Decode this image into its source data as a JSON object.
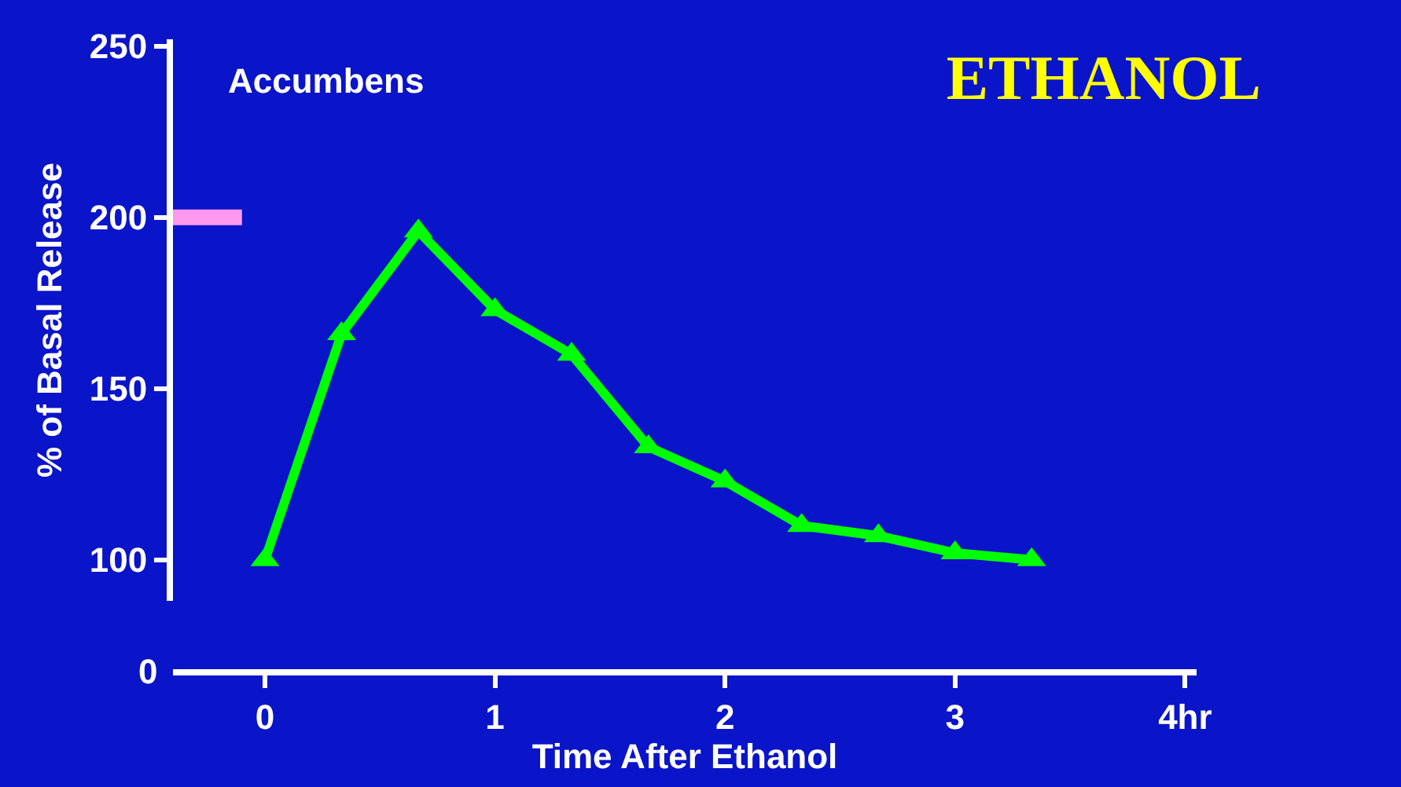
{
  "chart_data": {
    "type": "line",
    "title": "ETHANOL",
    "subtitle": "Accumbens",
    "xlabel": "Time After Ethanol",
    "ylabel": "% of Basal Release",
    "x": [
      0,
      0.333,
      0.667,
      1,
      1.333,
      1.667,
      2,
      2.333,
      2.667,
      3,
      3.333
    ],
    "series": [
      {
        "color": "#00ff00",
        "values": [
          100,
          166,
          196,
          173,
          160,
          133,
          123,
          110,
          107,
          102,
          100
        ]
      },
      {
        "color": "#ff99ee",
        "x": [
          -0.4,
          -0.1
        ],
        "values": [
          200,
          200
        ],
        "marker": "none"
      }
    ],
    "xlim": [
      -0.4,
      4.05
    ],
    "ylim": [
      88,
      252
    ],
    "annotations": [
      "0"
    ],
    "xticks": [
      0,
      1,
      2,
      3,
      {
        "value": 4,
        "label": "4hr"
      }
    ],
    "yticks": [
      100,
      150,
      200,
      250
    ],
    "marker": "triangle",
    "line_style": "solid",
    "grid": false
  }
}
